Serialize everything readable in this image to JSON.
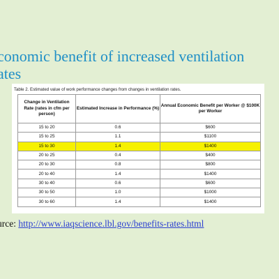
{
  "slide": {
    "title_line1": "conomic benefit of increased ventilation",
    "title_line2": "ates"
  },
  "table": {
    "caption": "Table 2. Estimated value of work performance changes from changes in ventilation rates.",
    "headers": [
      "Change in Ventilation Rate (rates in cfm per person)",
      "Estimated Increase in Performance (%)",
      "Annual Economic Benefit per Worker @ $100K per Worker"
    ],
    "rows": [
      [
        "15 to 20",
        "0.6",
        "$600"
      ],
      [
        "15 to 25",
        "1.1",
        "$1100"
      ],
      [
        "15 to 30",
        "1.4",
        "$1400"
      ],
      [
        "20 to 25",
        "0.4",
        "$400"
      ],
      [
        "20 to 30",
        "0.8",
        "$800"
      ],
      [
        "20 to 40",
        "1.4",
        "$1400"
      ],
      [
        "30 to 40",
        "0.6",
        "$600"
      ],
      [
        "30 to 50",
        "1.0",
        "$1000"
      ],
      [
        "30 to 60",
        "1.4",
        "$1400"
      ]
    ],
    "highlight_row_index": 2,
    "highlight_color": "#f6f100"
  },
  "source": {
    "label": "urce:",
    "link_text": "http://www.iaqscience.lbl.gov/benefits-rates.html"
  },
  "colors": {
    "background": "#e3efd3",
    "title": "#1f8fc6",
    "link": "#2b3fd1"
  }
}
